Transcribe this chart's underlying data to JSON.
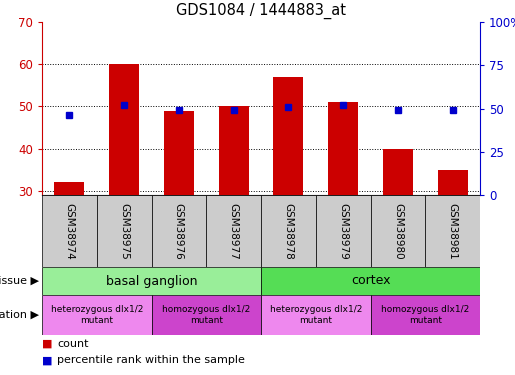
{
  "title": "GDS1084 / 1444883_at",
  "samples": [
    "GSM38974",
    "GSM38975",
    "GSM38976",
    "GSM38977",
    "GSM38978",
    "GSM38979",
    "GSM38980",
    "GSM38981"
  ],
  "count_values": [
    32,
    60,
    49,
    50,
    57,
    51,
    40,
    35
  ],
  "percentile_values": [
    46,
    52,
    49,
    49,
    51,
    52,
    49,
    49
  ],
  "ylim_left": [
    29,
    70
  ],
  "ylim_right": [
    0,
    100
  ],
  "bar_color": "#cc0000",
  "dot_color": "#0000cc",
  "bar_bottom": 29,
  "tissue_groups": [
    {
      "label": "basal ganglion",
      "start": 0,
      "end": 4,
      "color": "#99ee99"
    },
    {
      "label": "cortex",
      "start": 4,
      "end": 8,
      "color": "#55dd55"
    }
  ],
  "genotype_groups": [
    {
      "label": "heterozygous dlx1/2\nmutant",
      "start": 0,
      "end": 2,
      "color": "#ee88ee"
    },
    {
      "label": "homozygous dlx1/2\nmutant",
      "start": 2,
      "end": 4,
      "color": "#cc44cc"
    },
    {
      "label": "heterozygous dlx1/2\nmutant",
      "start": 4,
      "end": 6,
      "color": "#ee88ee"
    },
    {
      "label": "homozygous dlx1/2\nmutant",
      "start": 6,
      "end": 8,
      "color": "#cc44cc"
    }
  ],
  "yticks_left": [
    30,
    40,
    50,
    60,
    70
  ],
  "yticks_right": [
    0,
    25,
    50,
    75,
    100
  ],
  "background_color": "#ffffff",
  "sample_box_color": "#cccccc",
  "fig_width": 5.15,
  "fig_height": 3.75,
  "fig_dpi": 100
}
